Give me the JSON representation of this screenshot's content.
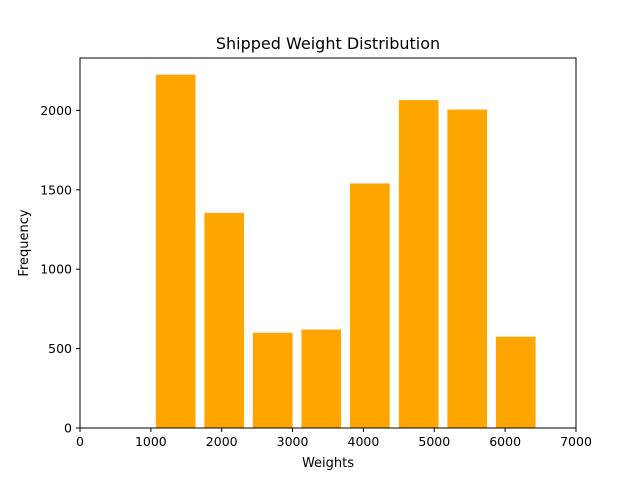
{
  "chart_data": {
    "type": "bar",
    "title": "Shipped Weight Distribution",
    "xlabel": "Weights",
    "ylabel": "Frequency",
    "xlim": [
      0,
      7000
    ],
    "ylim": [
      0,
      2330
    ],
    "xticks": [
      0,
      1000,
      2000,
      3000,
      4000,
      5000,
      6000,
      7000
    ],
    "yticks": [
      0,
      500,
      1000,
      1500,
      2000
    ],
    "bar_color": "#ffa500",
    "grid": false,
    "bars": [
      {
        "x_start": 1070,
        "x_end": 1630,
        "value": 2225
      },
      {
        "x_start": 1755,
        "x_end": 2315,
        "value": 1355
      },
      {
        "x_start": 2440,
        "x_end": 3000,
        "value": 600
      },
      {
        "x_start": 3125,
        "x_end": 3685,
        "value": 620
      },
      {
        "x_start": 3810,
        "x_end": 4370,
        "value": 1540
      },
      {
        "x_start": 4500,
        "x_end": 5060,
        "value": 2065
      },
      {
        "x_start": 5185,
        "x_end": 5745,
        "value": 2005
      },
      {
        "x_start": 5870,
        "x_end": 6430,
        "value": 575
      }
    ]
  }
}
